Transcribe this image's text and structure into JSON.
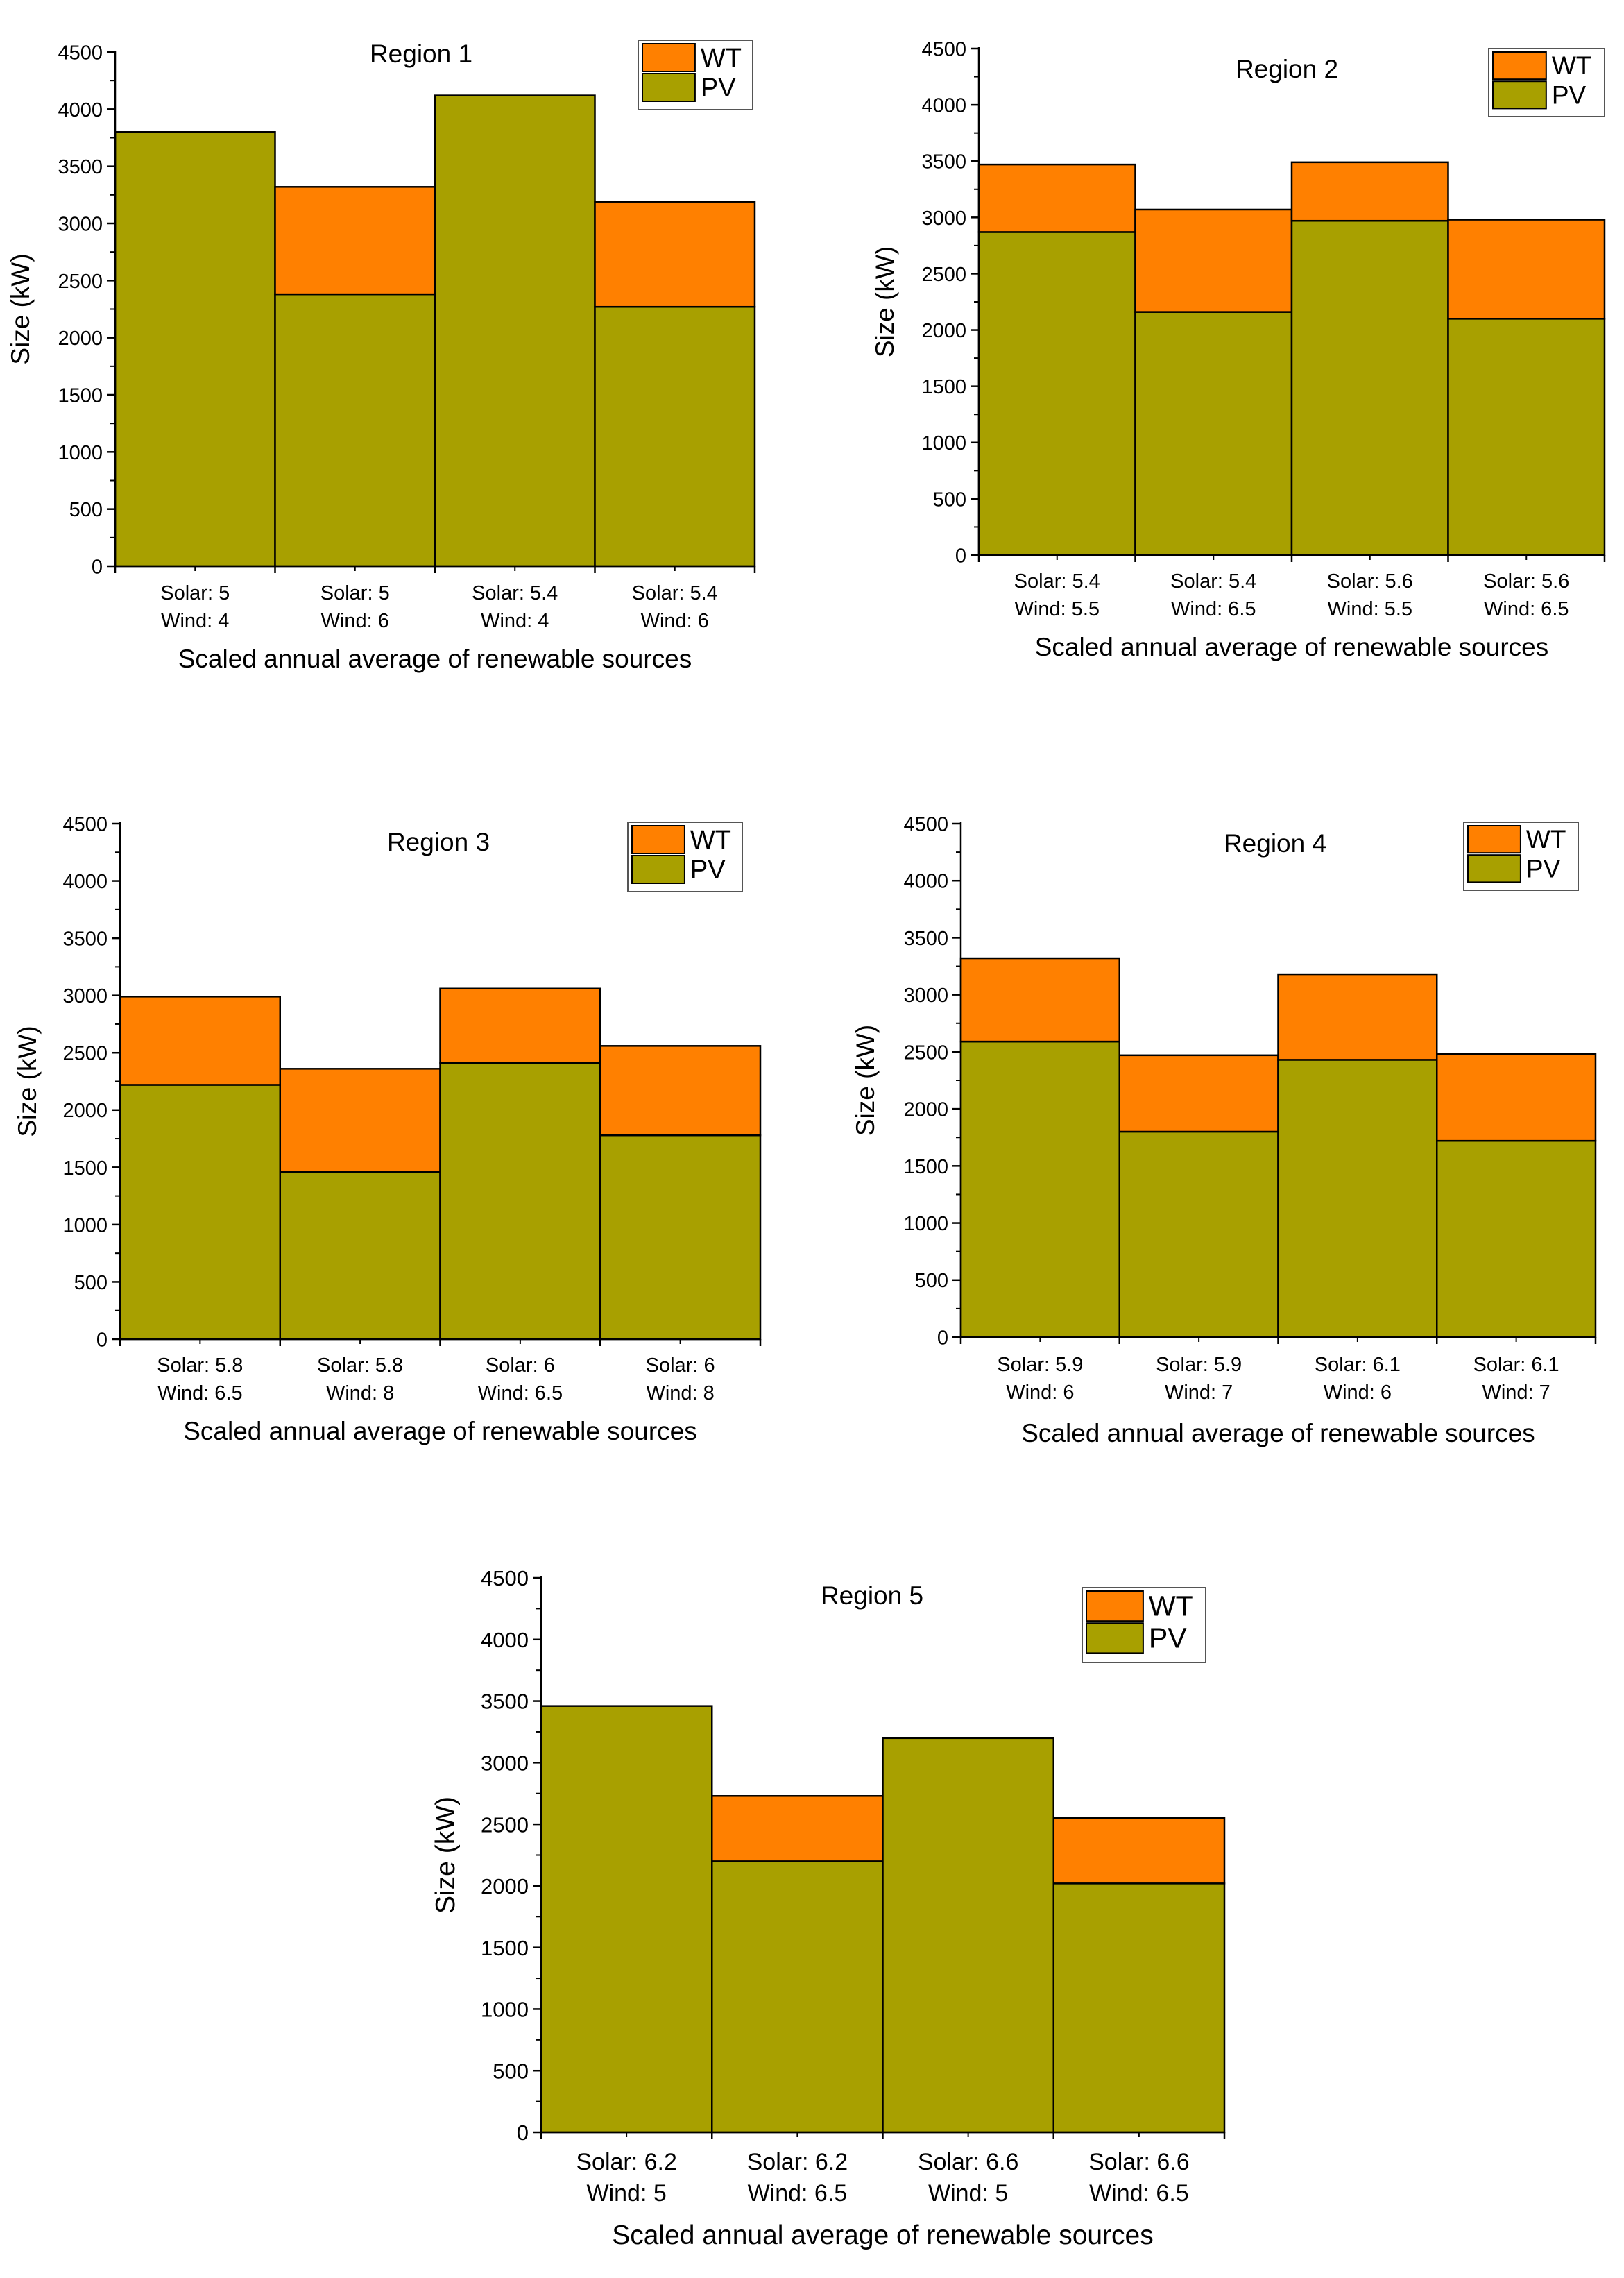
{
  "colors": {
    "pv": "#A8A000",
    "wt": "#FF8000",
    "stroke": "#000000"
  },
  "chart_data": [
    {
      "type": "bar",
      "stacked": true,
      "title": "Region 1",
      "xlabel": "Scaled annual average of renewable sources",
      "ylabel": "Size (kW)",
      "ylim": [
        0,
        4500
      ],
      "yticks": [
        "0",
        "500",
        "1000",
        "1500",
        "2000",
        "2500",
        "3000",
        "3500",
        "4000",
        "4500"
      ],
      "categories": [
        [
          "Solar: 5",
          "Wind: 4"
        ],
        [
          "Solar: 5",
          "Wind: 6"
        ],
        [
          "Solar: 5.4",
          "Wind: 4"
        ],
        [
          "Solar: 5.4",
          "Wind: 6"
        ]
      ],
      "series": [
        {
          "name": "PV",
          "values": [
            3800,
            2380,
            4120,
            2270
          ]
        },
        {
          "name": "WT",
          "values": [
            0,
            940,
            0,
            920
          ]
        }
      ],
      "legend": [
        "WT",
        "PV"
      ],
      "legend_position": "top-right"
    },
    {
      "type": "bar",
      "stacked": true,
      "title": "Region 2",
      "xlabel": "Scaled annual average of renewable sources",
      "ylabel": "Size (kW)",
      "ylim": [
        0,
        4500
      ],
      "yticks": [
        "0",
        "500",
        "1000",
        "1500",
        "2000",
        "2500",
        "3000",
        "3500",
        "4000",
        "4500"
      ],
      "categories": [
        [
          "Solar: 5.4",
          "Wind: 5.5"
        ],
        [
          "Solar: 5.4",
          "Wind: 6.5"
        ],
        [
          "Solar: 5.6",
          "Wind: 5.5"
        ],
        [
          "Solar: 5.6",
          "Wind: 6.5"
        ]
      ],
      "series": [
        {
          "name": "PV",
          "values": [
            2870,
            2160,
            2970,
            2100
          ]
        },
        {
          "name": "WT",
          "values": [
            600,
            910,
            520,
            880
          ]
        }
      ],
      "legend": [
        "WT",
        "PV"
      ],
      "legend_position": "top-right"
    },
    {
      "type": "bar",
      "stacked": true,
      "title": "Region 3",
      "xlabel": "Scaled annual average of renewable sources",
      "ylabel": "Size (kW)",
      "ylim": [
        0,
        4500
      ],
      "yticks": [
        "0",
        "500",
        "1000",
        "1500",
        "2000",
        "2500",
        "3000",
        "3500",
        "4000",
        "4500"
      ],
      "categories": [
        [
          "Solar: 5.8",
          "Wind: 6.5"
        ],
        [
          "Solar: 5.8",
          "Wind: 8"
        ],
        [
          "Solar: 6",
          "Wind: 6.5"
        ],
        [
          "Solar: 6",
          "Wind: 8"
        ]
      ],
      "series": [
        {
          "name": "PV",
          "values": [
            2220,
            1460,
            2410,
            1780
          ]
        },
        {
          "name": "WT",
          "values": [
            770,
            900,
            650,
            780
          ]
        }
      ],
      "legend": [
        "WT",
        "PV"
      ],
      "legend_position": "top-right"
    },
    {
      "type": "bar",
      "stacked": true,
      "title": "Region 4",
      "xlabel": "Scaled annual average of renewable sources",
      "ylabel": "Size (kW)",
      "ylim": [
        0,
        4500
      ],
      "yticks": [
        "0",
        "500",
        "1000",
        "1500",
        "2000",
        "2500",
        "3000",
        "3500",
        "4000",
        "4500"
      ],
      "categories": [
        [
          "Solar: 5.9",
          "Wind: 6"
        ],
        [
          "Solar: 5.9",
          "Wind: 7"
        ],
        [
          "Solar: 6.1",
          "Wind: 6"
        ],
        [
          "Solar: 6.1",
          "Wind: 7"
        ]
      ],
      "series": [
        {
          "name": "PV",
          "values": [
            2590,
            1800,
            2430,
            1720
          ]
        },
        {
          "name": "WT",
          "values": [
            730,
            670,
            750,
            760
          ]
        }
      ],
      "legend": [
        "WT",
        "PV"
      ],
      "legend_position": "top-right"
    },
    {
      "type": "bar",
      "stacked": true,
      "title": "Region 5",
      "xlabel": "Scaled annual average of renewable sources",
      "ylabel": "Size (kW)",
      "ylim": [
        0,
        4500
      ],
      "yticks": [
        "0",
        "500",
        "1000",
        "1500",
        "2000",
        "2500",
        "3000",
        "3500",
        "4000",
        "4500"
      ],
      "categories": [
        [
          "Solar: 6.2",
          "Wind: 5"
        ],
        [
          "Solar: 6.2",
          "Wind: 6.5"
        ],
        [
          "Solar: 6.6",
          "Wind: 5"
        ],
        [
          "Solar: 6.6",
          "Wind: 6.5"
        ]
      ],
      "series": [
        {
          "name": "PV",
          "values": [
            3460,
            2200,
            3200,
            2020
          ]
        },
        {
          "name": "WT",
          "values": [
            0,
            530,
            0,
            530
          ]
        }
      ],
      "legend": [
        "WT",
        "PV"
      ],
      "legend_position": "top-right"
    }
  ]
}
